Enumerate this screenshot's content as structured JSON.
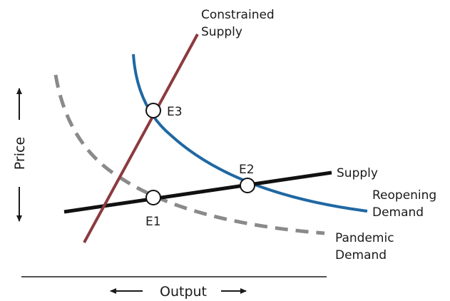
{
  "curves": [
    {
      "label": [
        "Constrained",
        "Supply"
      ]
    },
    {
      "label": [
        "Supply"
      ]
    },
    {
      "label": [
        "Reopening",
        "Demand"
      ]
    },
    {
      "label": [
        "Pandemic",
        "Demand"
      ]
    }
  ],
  "points": [
    {
      "label": "E1"
    },
    {
      "label": "E2"
    },
    {
      "label": "E3"
    }
  ],
  "axes": {
    "y": "Price",
    "x": "Output"
  }
}
